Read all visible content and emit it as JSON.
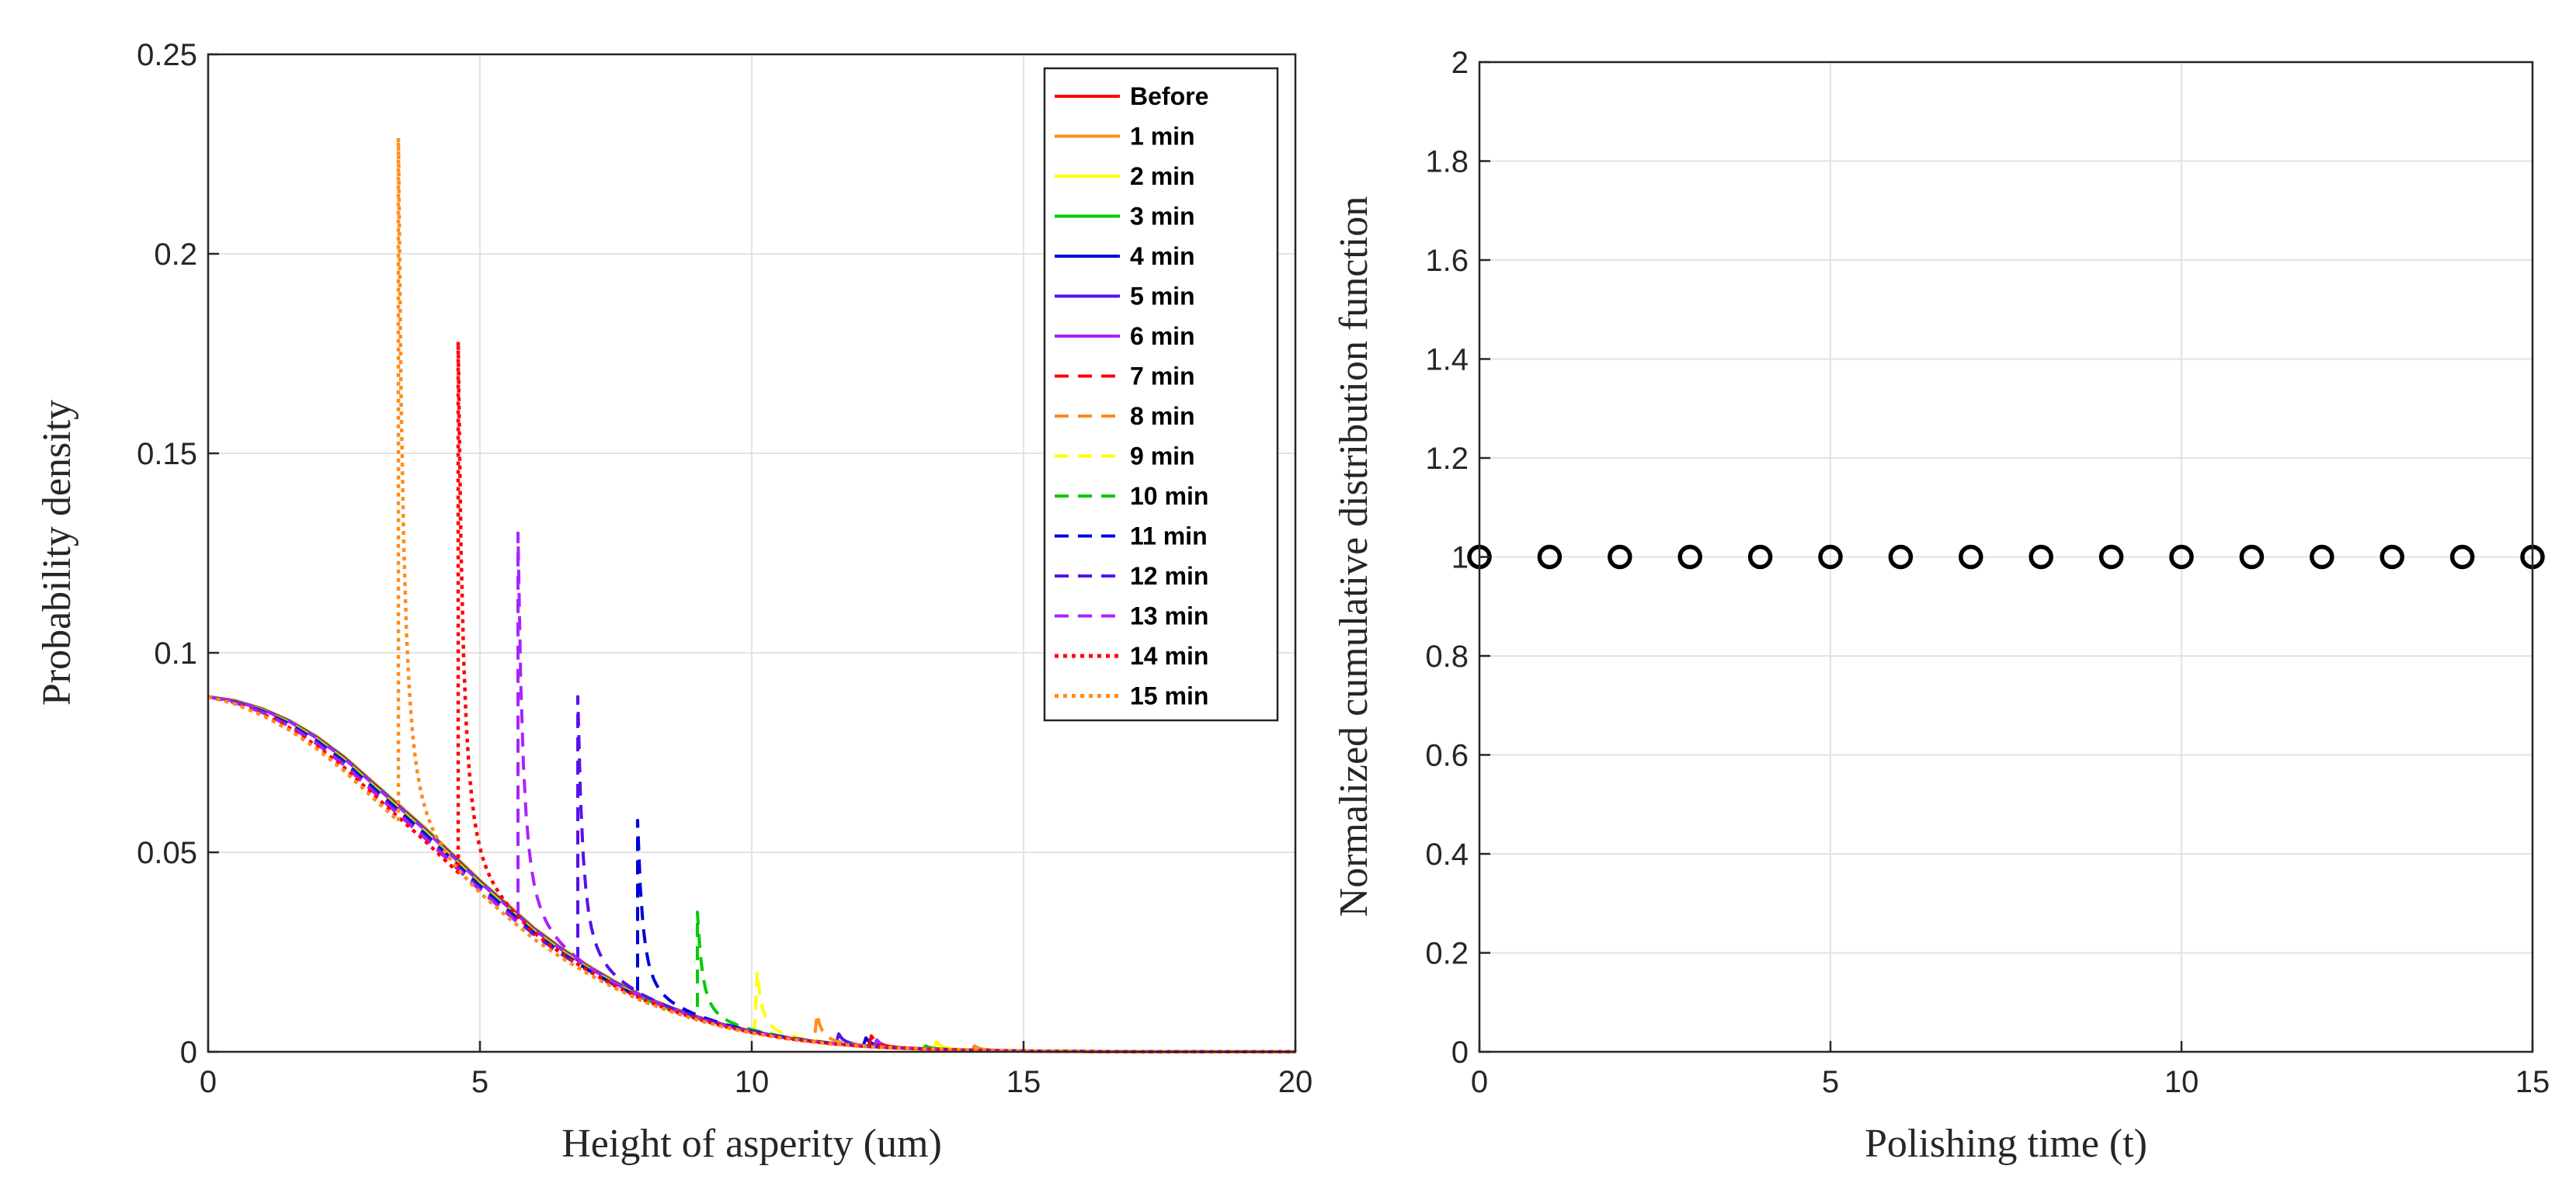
{
  "chart_data": [
    {
      "type": "line",
      "title": "",
      "xlabel": "Height of asperity (um)",
      "ylabel": "Probability density",
      "xlim": [
        0,
        20
      ],
      "ylim": [
        0,
        0.25
      ],
      "xticks": [
        0,
        5,
        10,
        15,
        20
      ],
      "yticks": [
        0,
        0.05,
        0.1,
        0.15,
        0.2,
        0.25
      ],
      "ytick_labels": [
        "0",
        "0.05",
        "0.1",
        "0.15",
        "0.2",
        "0.25"
      ],
      "grid": true,
      "legend_position": "top-right",
      "base_curve": {
        "x": [
          0,
          0.5,
          1,
          1.5,
          2,
          2.5,
          3,
          3.5,
          4,
          4.5,
          5,
          5.5,
          6,
          6.5,
          7,
          7.5,
          8,
          8.5,
          9,
          9.5,
          10,
          10.5,
          11,
          11.5,
          12,
          12.5,
          13,
          13.5,
          14,
          14.5,
          15,
          15.5,
          16,
          17,
          18,
          19,
          20
        ],
        "y": [
          0.089,
          0.088,
          0.086,
          0.083,
          0.079,
          0.074,
          0.068,
          0.062,
          0.056,
          0.0495,
          0.043,
          0.037,
          0.031,
          0.026,
          0.0215,
          0.0175,
          0.014,
          0.0112,
          0.0088,
          0.0068,
          0.0052,
          0.0039,
          0.0029,
          0.0021,
          0.0015,
          0.0011,
          0.0008,
          0.0006,
          0.0004,
          0.0003,
          0.0002,
          0.0001,
          0.0001,
          0,
          0,
          0,
          0
        ]
      },
      "series": [
        {
          "name": "Before",
          "color": "#ff0000",
          "style": "solid",
          "peak_x": null,
          "peak_y": null,
          "steep": 0
        },
        {
          "name": "1 min",
          "color": "#ff8c1a",
          "style": "solid",
          "peak_x": 14.1,
          "peak_y": 0.0015,
          "steep": 0.0
        },
        {
          "name": "2 min",
          "color": "#ffff00",
          "style": "solid",
          "peak_x": 13.4,
          "peak_y": 0.0025,
          "steep": 0.02
        },
        {
          "name": "3 min",
          "color": "#00cc00",
          "style": "solid",
          "peak_x": 13.2,
          "peak_y": 0.0015,
          "steep": 0.03
        },
        {
          "name": "4 min",
          "color": "#0000dd",
          "style": "solid",
          "peak_x": 12.1,
          "peak_y": 0.0035,
          "steep": 0.05
        },
        {
          "name": "5 min",
          "color": "#5511ee",
          "style": "solid",
          "peak_x": 11.6,
          "peak_y": 0.0045,
          "steep": 0.06
        },
        {
          "name": "6 min",
          "color": "#aa22ff",
          "style": "solid",
          "peak_x": 12.3,
          "peak_y": 0.003,
          "steep": 0.07
        },
        {
          "name": "7 min",
          "color": "#ff0000",
          "style": "dash",
          "peak_x": 12.2,
          "peak_y": 0.004,
          "steep": 0.09
        },
        {
          "name": "8 min",
          "color": "#ff8c1a",
          "style": "dash",
          "peak_x": 11.2,
          "peak_y": 0.0095,
          "steep": 0.11
        },
        {
          "name": "9 min",
          "color": "#ffff00",
          "style": "dash",
          "peak_x": 10.1,
          "peak_y": 0.02,
          "steep": 0.13
        },
        {
          "name": "10 min",
          "color": "#00cc00",
          "style": "dash",
          "peak_x": 9.0,
          "peak_y": 0.035,
          "steep": 0.16
        },
        {
          "name": "11 min",
          "color": "#0000dd",
          "style": "dash",
          "peak_x": 7.9,
          "peak_y": 0.058,
          "steep": 0.2
        },
        {
          "name": "12 min",
          "color": "#5511ee",
          "style": "dash",
          "peak_x": 6.8,
          "peak_y": 0.089,
          "steep": 0.26
        },
        {
          "name": "13 min",
          "color": "#aa22ff",
          "style": "dash",
          "peak_x": 5.7,
          "peak_y": 0.13,
          "steep": 0.33
        },
        {
          "name": "14 min",
          "color": "#ff0000",
          "style": "dot",
          "peak_x": 4.6,
          "peak_y": 0.178,
          "steep": 0.42
        },
        {
          "name": "15 min",
          "color": "#ff8c1a",
          "style": "dot",
          "peak_x": 3.5,
          "peak_y": 0.229,
          "steep": 0.55
        }
      ]
    },
    {
      "type": "scatter",
      "title": "",
      "xlabel": "Polishing time (t)",
      "ylabel": "Normalized cumulative distribution function",
      "xlim": [
        0,
        15
      ],
      "ylim": [
        0,
        2
      ],
      "xticks": [
        0,
        5,
        10,
        15
      ],
      "yticks": [
        0,
        0.2,
        0.4,
        0.6,
        0.8,
        1,
        1.2,
        1.4,
        1.6,
        1.8,
        2
      ],
      "ytick_labels": [
        "0",
        "0.2",
        "0.4",
        "0.6",
        "0.8",
        "1",
        "1.2",
        "1.4",
        "1.6",
        "1.8",
        "2"
      ],
      "grid": true,
      "marker": "open-circle",
      "marker_color": "#000000",
      "x": [
        0,
        1,
        2,
        3,
        4,
        5,
        6,
        7,
        8,
        9,
        10,
        11,
        12,
        13,
        14,
        15
      ],
      "y": [
        1,
        1,
        1,
        1,
        1,
        1,
        1,
        1,
        1,
        1,
        1,
        1,
        1,
        1,
        1,
        1
      ]
    }
  ]
}
